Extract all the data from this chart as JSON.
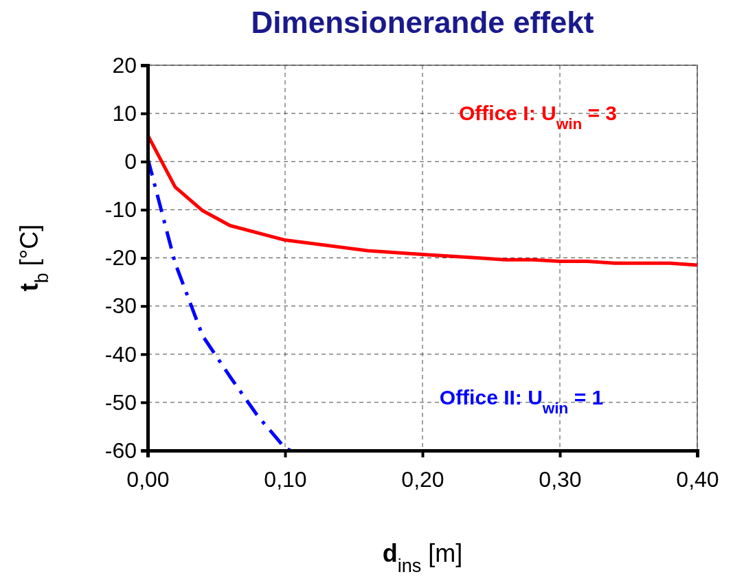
{
  "chart_data": {
    "type": "line",
    "title": "Dimensionerande effekt",
    "xlabel": "d$_{ins}$ [m]",
    "ylabel": "t$_{b}$ [°C]",
    "xlim": [
      0,
      0.4
    ],
    "xticks": [
      {
        "value": 0,
        "label": "0,00"
      },
      {
        "value": 0.1,
        "label": "0,10"
      },
      {
        "value": 0.2,
        "label": "0,20"
      },
      {
        "value": 0.3,
        "label": "0,30"
      },
      {
        "value": 0.4,
        "label": "0,40"
      }
    ],
    "ylim": [
      -60,
      20
    ],
    "yticks": [
      -60,
      -50,
      -40,
      -30,
      -20,
      -10,
      0,
      10,
      20
    ],
    "grid": true,
    "marker": "none",
    "series": [
      {
        "name": "Office I: U$_{win}$ = 3",
        "color": "#ff0000",
        "line_style": "solid",
        "x": [
          0,
          0.02,
          0.04,
          0.06,
          0.1,
          0.16,
          0.2,
          0.24,
          0.26,
          0.28,
          0.3,
          0.32,
          0.34,
          0.38,
          0.4
        ],
        "values": [
          5.5,
          -5.3,
          -10.2,
          -13.3,
          -16.3,
          -18.5,
          -19.3,
          -20,
          -20.4,
          -20.4,
          -20.7,
          -20.7,
          -21.1,
          -21.1,
          -21.5
        ]
      },
      {
        "name": "Office II: U$_{win}$ = 1",
        "color": "#0000ff",
        "line_style": "dashdot",
        "x": [
          0,
          0.02,
          0.04,
          0.06,
          0.08,
          0.1,
          0.104
        ],
        "values": [
          0.7,
          -21.1,
          -36.2,
          -44.7,
          -52.8,
          -59.5,
          -60
        ]
      }
    ]
  }
}
